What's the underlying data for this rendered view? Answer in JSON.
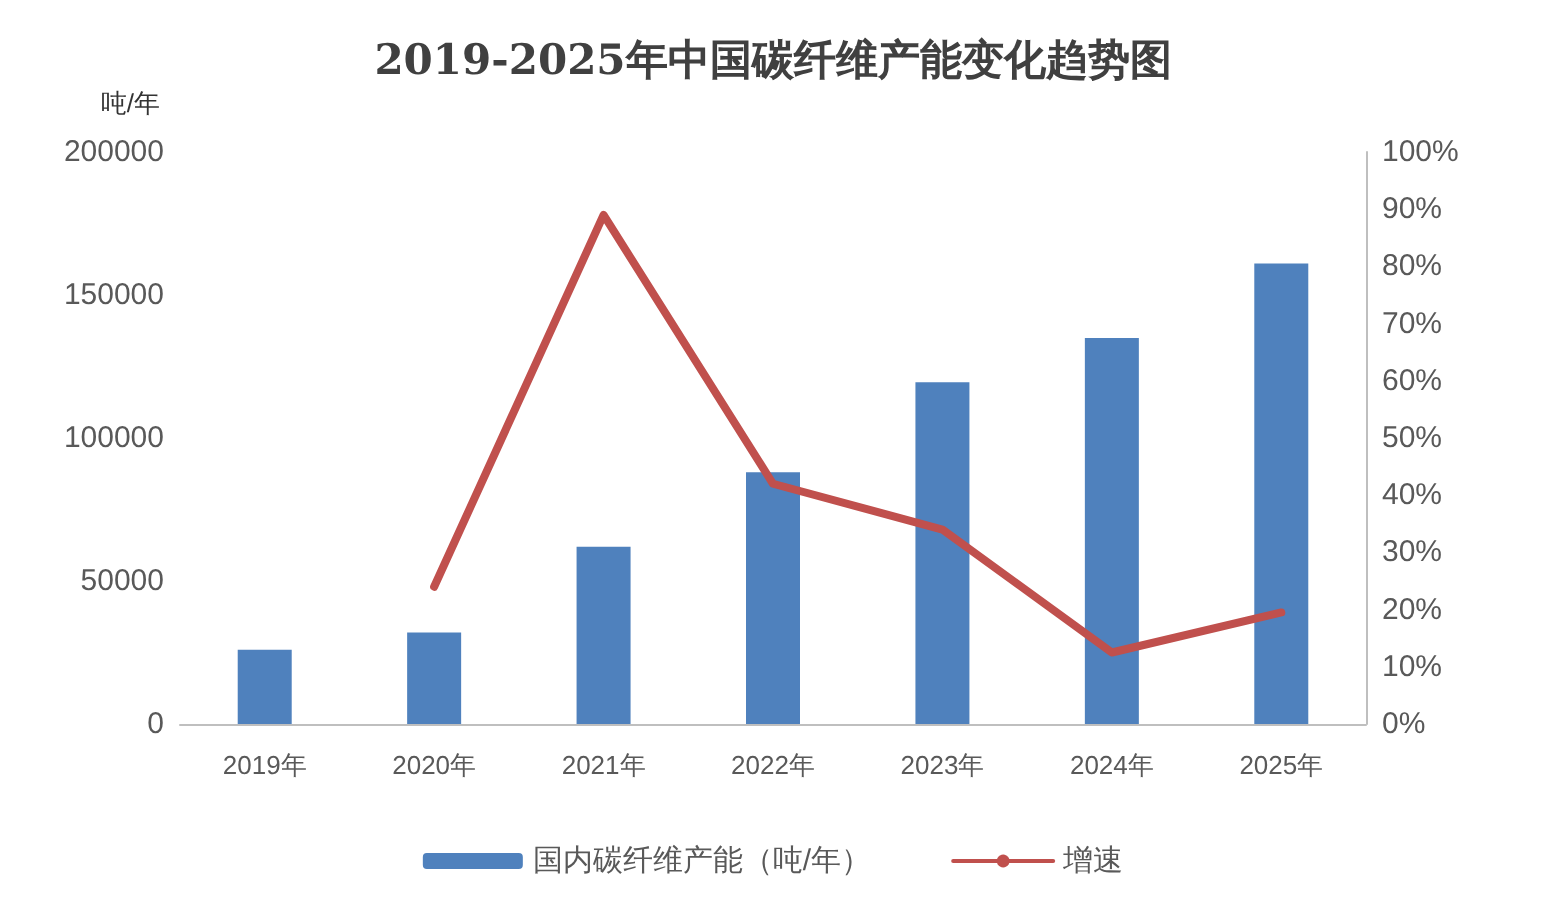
{
  "chart_data": {
    "type": "bar",
    "title": "2019-2025年中国碳纤维产能变化趋势图",
    "ylabel": "吨/年",
    "categories": [
      "2019年",
      "2020年",
      "2021年",
      "2022年",
      "2023年",
      "2024年",
      "2025年"
    ],
    "series": [
      {
        "name": "国内碳纤维产能（吨/年）",
        "color": "#4f81bd",
        "values": [
          26000,
          32000,
          62000,
          88000,
          119500,
          135000,
          161000
        ]
      },
      {
        "name": "增速",
        "type": "line",
        "axis": "y2",
        "color": "#c0504d",
        "values": [
          null,
          24,
          89,
          42,
          34,
          12.5,
          19.5
        ]
      }
    ],
    "ylim": [
      0,
      200000
    ],
    "yticks": [
      0,
      50000,
      100000,
      150000,
      200000
    ],
    "y2lim": [
      0,
      100
    ],
    "y2ticks": [
      {
        "value": 0,
        "label": "0%"
      },
      {
        "value": 10,
        "label": "10%"
      },
      {
        "value": 20,
        "label": "20%"
      },
      {
        "value": 30,
        "label": "30%"
      },
      {
        "value": 40,
        "label": "40%"
      },
      {
        "value": 50,
        "label": "50%"
      },
      {
        "value": 60,
        "label": "60%"
      },
      {
        "value": 70,
        "label": "70%"
      },
      {
        "value": 80,
        "label": "80%"
      },
      {
        "value": 90,
        "label": "90%"
      },
      {
        "value": 100,
        "label": "100%"
      }
    ],
    "grid": false,
    "legend": "bottom",
    "marker": "none",
    "line_style": "solid"
  }
}
